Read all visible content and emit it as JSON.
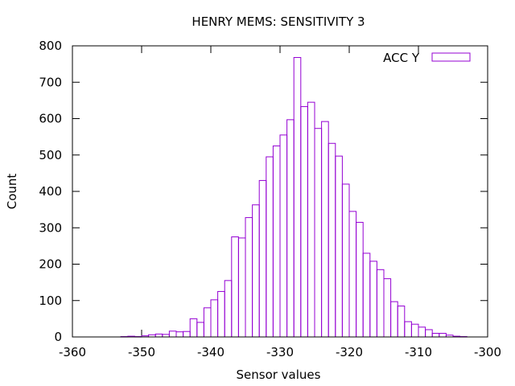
{
  "chart_data": {
    "type": "bar",
    "title": "HENRY MEMS: SENSITIVITY 3",
    "xlabel": "Sensor values",
    "ylabel": "Count",
    "xlim": [
      -360,
      -300
    ],
    "ylim": [
      0,
      800
    ],
    "xticks": [
      -360,
      -350,
      -340,
      -330,
      -320,
      -310,
      -300
    ],
    "yticks": [
      0,
      100,
      200,
      300,
      400,
      500,
      600,
      700,
      800
    ],
    "xtick_labels": [
      "-360",
      "-350",
      "-340",
      "-330",
      "-320",
      "-310",
      "-300"
    ],
    "ytick_labels": [
      "0",
      "100",
      "200",
      "300",
      "400",
      "500",
      "600",
      "700",
      "800"
    ],
    "bin_width": 1,
    "legend": {
      "position": "top-right"
    },
    "series": [
      {
        "name": "ACC Y",
        "color": "#9400d3",
        "bin_starts": [
          -353,
          -352,
          -351,
          -350,
          -349,
          -348,
          -347,
          -346,
          -345,
          -344,
          -343,
          -342,
          -341,
          -340,
          -339,
          -338,
          -337,
          -336,
          -335,
          -334,
          -333,
          -332,
          -331,
          -330,
          -329,
          -328,
          -327,
          -326,
          -325,
          -324,
          -323,
          -322,
          -321,
          -320,
          -319,
          -318,
          -317,
          -316,
          -315,
          -314,
          -313,
          -312,
          -311,
          -310,
          -309,
          -308,
          -307,
          -306,
          -305,
          -304
        ],
        "values": [
          1,
          2,
          1,
          3,
          6,
          8,
          7,
          16,
          14,
          15,
          50,
          40,
          80,
          102,
          125,
          155,
          275,
          272,
          328,
          363,
          430,
          495,
          525,
          555,
          597,
          768,
          633,
          645,
          573,
          592,
          532,
          497,
          420,
          345,
          315,
          230,
          208,
          185,
          160,
          97,
          85,
          42,
          35,
          27,
          20,
          10,
          10,
          5,
          2,
          1
        ]
      }
    ]
  }
}
